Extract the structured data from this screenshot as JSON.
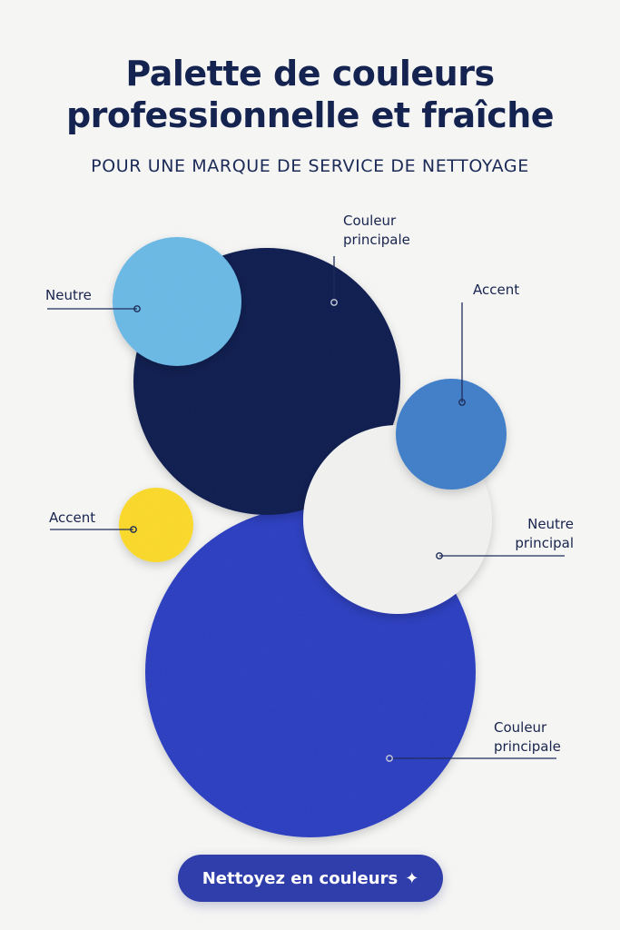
{
  "header": {
    "title_line1": "Palette de couleurs",
    "title_line2": "professionnelle et fraîche",
    "subtitle": "POUR UNE MARQUE DE SERVICE DE NETTOYAGE"
  },
  "swatches": [
    {
      "id": "navy",
      "color": "#0d1d4f",
      "label_line1": "Couleur",
      "label_line2": "principale"
    },
    {
      "id": "light-blue",
      "color": "#6ab9e6",
      "label_line1": "Neutre",
      "label_line2": ""
    },
    {
      "id": "mid-blue",
      "color": "#3f7ec9",
      "label_line1": "Accent",
      "label_line2": ""
    },
    {
      "id": "white",
      "color": "#f1f1f0",
      "label_line1": "Neutre",
      "label_line2": "principal"
    },
    {
      "id": "yellow",
      "color": "#fbd92c",
      "label_line1": "Accent",
      "label_line2": ""
    },
    {
      "id": "royal-blue",
      "color": "#2a3ec0",
      "label_line1": "Couleur",
      "label_line2": "principale"
    }
  ],
  "cta": {
    "label": "Nettoyez en couleurs",
    "icon": "sparkle-icon"
  }
}
